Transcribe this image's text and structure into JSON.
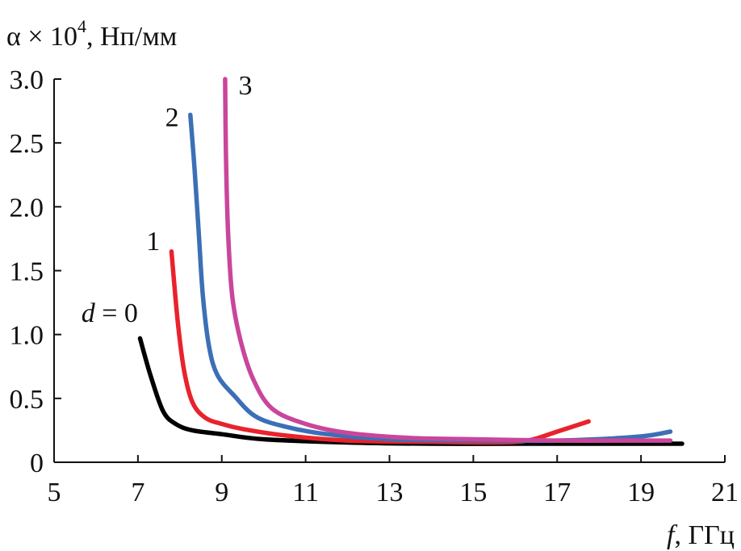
{
  "chart_data": {
    "type": "line",
    "ylabel": {
      "prefix": "α × 10",
      "sup": "4",
      "suffix": ", Нп/мм"
    },
    "xlabel": {
      "var": "f",
      "unit": ", ГГц"
    },
    "xlim": [
      5,
      21
    ],
    "ylim": [
      0,
      3.0
    ],
    "xticks": [
      5,
      7,
      9,
      11,
      13,
      15,
      17,
      19,
      21
    ],
    "xtick_labels": [
      "5",
      "7",
      "9",
      "11",
      "13",
      "15",
      "17",
      "19",
      "21"
    ],
    "yticks": [
      0,
      0.5,
      1.0,
      1.5,
      2.0,
      2.5,
      3.0
    ],
    "ytick_labels": [
      "0",
      "0.5",
      "1.0",
      "1.5",
      "2.0",
      "2.5",
      "3.0"
    ],
    "grid": false,
    "series": [
      {
        "name": "d = 0",
        "color": "#000000",
        "points": [
          [
            7.05,
            0.97
          ],
          [
            7.3,
            0.68
          ],
          [
            7.6,
            0.4
          ],
          [
            7.9,
            0.3
          ],
          [
            8.3,
            0.25
          ],
          [
            9.0,
            0.22
          ],
          [
            10.0,
            0.18
          ],
          [
            12.0,
            0.155
          ],
          [
            14.0,
            0.145
          ],
          [
            16.0,
            0.145
          ],
          [
            18.0,
            0.145
          ],
          [
            19.98,
            0.145
          ]
        ]
      },
      {
        "name": "1",
        "color": "#e8232c",
        "points": [
          [
            7.8,
            1.65
          ],
          [
            7.95,
            1.1
          ],
          [
            8.1,
            0.72
          ],
          [
            8.3,
            0.47
          ],
          [
            8.6,
            0.35
          ],
          [
            9.0,
            0.3
          ],
          [
            9.5,
            0.26
          ],
          [
            10.5,
            0.21
          ],
          [
            12.0,
            0.17
          ],
          [
            14.0,
            0.16
          ],
          [
            15.5,
            0.155
          ],
          [
            16.3,
            0.17
          ],
          [
            17.0,
            0.24
          ],
          [
            17.75,
            0.32
          ]
        ]
      },
      {
        "name": "2",
        "color": "#3c6fb6",
        "points": [
          [
            8.25,
            2.72
          ],
          [
            8.35,
            2.3
          ],
          [
            8.45,
            1.8
          ],
          [
            8.55,
            1.3
          ],
          [
            8.7,
            0.9
          ],
          [
            8.9,
            0.68
          ],
          [
            9.3,
            0.52
          ],
          [
            9.8,
            0.36
          ],
          [
            10.5,
            0.28
          ],
          [
            11.5,
            0.22
          ],
          [
            13.0,
            0.18
          ],
          [
            15.0,
            0.17
          ],
          [
            17.0,
            0.17
          ],
          [
            18.5,
            0.19
          ],
          [
            19.2,
            0.21
          ],
          [
            19.7,
            0.24
          ]
        ]
      },
      {
        "name": "3",
        "color": "#c9469b",
        "points": [
          [
            9.08,
            3.0
          ],
          [
            9.1,
            2.4
          ],
          [
            9.15,
            1.8
          ],
          [
            9.25,
            1.3
          ],
          [
            9.45,
            0.95
          ],
          [
            9.75,
            0.65
          ],
          [
            10.2,
            0.42
          ],
          [
            11.0,
            0.3
          ],
          [
            12.0,
            0.23
          ],
          [
            13.5,
            0.19
          ],
          [
            15.0,
            0.18
          ],
          [
            17.0,
            0.17
          ],
          [
            19.0,
            0.17
          ],
          [
            19.7,
            0.17
          ]
        ]
      }
    ],
    "curve_labels": [
      {
        "text": "d",
        "rest": " = 0",
        "italic": true,
        "x": 5.65,
        "y": 1.1
      },
      {
        "text": "1",
        "rest": "",
        "italic": false,
        "x": 7.2,
        "y": 1.66
      },
      {
        "text": "2",
        "rest": "",
        "italic": false,
        "x": 7.65,
        "y": 2.63
      },
      {
        "text": "3",
        "rest": "",
        "italic": false,
        "x": 9.4,
        "y": 2.88
      }
    ]
  }
}
